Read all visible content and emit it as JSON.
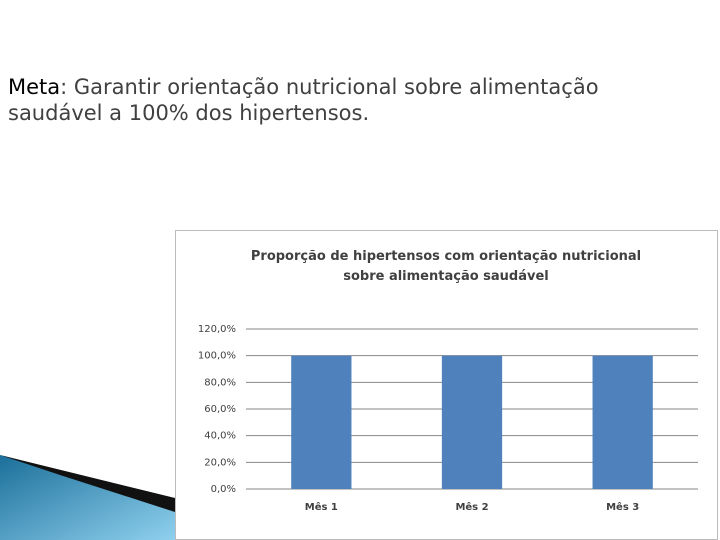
{
  "header": {
    "label": "Meta",
    "text": ": Garantir orientação nutricional sobre alimentação saudável a 100% dos hipertensos."
  },
  "chart_data": {
    "type": "bar",
    "title": "Proporção de hipertensos com orientação nutricional sobre alimentação saudável",
    "categories": [
      "Mês 1",
      "Mês 2",
      "Mês 3"
    ],
    "values": [
      100,
      100,
      100
    ],
    "color": "#4f81bd",
    "ylim": [
      0,
      120
    ],
    "yticks": [
      {
        "value": 0,
        "label": "0,0%"
      },
      {
        "value": 20,
        "label": "20,0%"
      },
      {
        "value": 40,
        "label": "40,0%"
      },
      {
        "value": 60,
        "label": "60,0%"
      },
      {
        "value": 80,
        "label": "80,0%"
      },
      {
        "value": 100,
        "label": "100,0%"
      },
      {
        "value": 120,
        "label": "120,0%"
      }
    ],
    "grid": true
  }
}
